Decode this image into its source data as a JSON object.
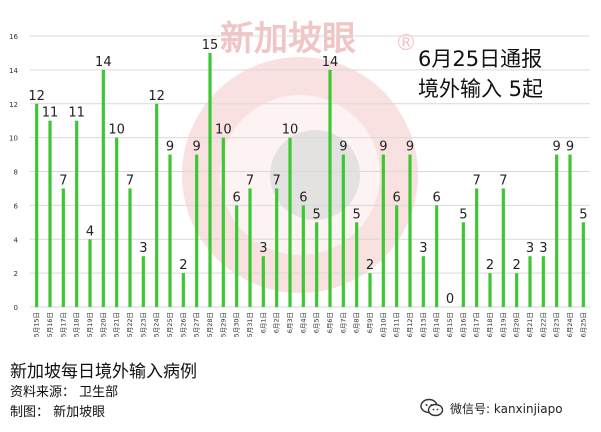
{
  "watermark": {
    "text": "新加坡眼",
    "registered": "®"
  },
  "callout": {
    "line1": "6月25日通报",
    "line2": "境外输入 5起"
  },
  "footer": {
    "title": "新加坡每日境外输入病例",
    "source": "资料来源： 卫生部",
    "maker": "制图： 新加坡眼"
  },
  "wechat": {
    "label": "微信号: kanxinjiapo",
    "icon": "wechat-icon"
  },
  "colors": {
    "bar": "#3cc833",
    "grid": "#d9d9d9",
    "watermark": "#e24a4a"
  },
  "chart_data": {
    "type": "bar",
    "categories": [
      "5月15日",
      "5月16日",
      "5月17日",
      "5月18日",
      "5月19日",
      "5月20日",
      "5月21日",
      "5月22日",
      "5月23日",
      "5月24日",
      "5月25日",
      "5月26日",
      "5月27日",
      "5月28日",
      "5月29日",
      "5月30日",
      "5月31日",
      "6月1日",
      "6月2日",
      "6月3日",
      "6月4日",
      "6月5日",
      "6月6日",
      "6月7日",
      "6月8日",
      "6月9日",
      "6月10日",
      "6月11日",
      "6月12日",
      "6月13日",
      "6月14日",
      "6月15日",
      "6月16日",
      "6月17日",
      "6月18日",
      "6月19日",
      "6月20日",
      "6月21日",
      "6月22日",
      "6月23日",
      "6月24日",
      "6月25日"
    ],
    "values": [
      12,
      11,
      7,
      11,
      4,
      14,
      10,
      7,
      3,
      12,
      9,
      2,
      9,
      15,
      10,
      6,
      7,
      3,
      7,
      10,
      6,
      5,
      14,
      9,
      5,
      2,
      9,
      6,
      9,
      3,
      6,
      0,
      5,
      7,
      2,
      7,
      2,
      3,
      3,
      9,
      9,
      5
    ],
    "yticks": [
      "0",
      "2",
      "4",
      "6",
      "8",
      "10",
      "12",
      "14",
      "16"
    ],
    "ylim": [
      0,
      16
    ],
    "grid": true,
    "data_labels": true
  }
}
